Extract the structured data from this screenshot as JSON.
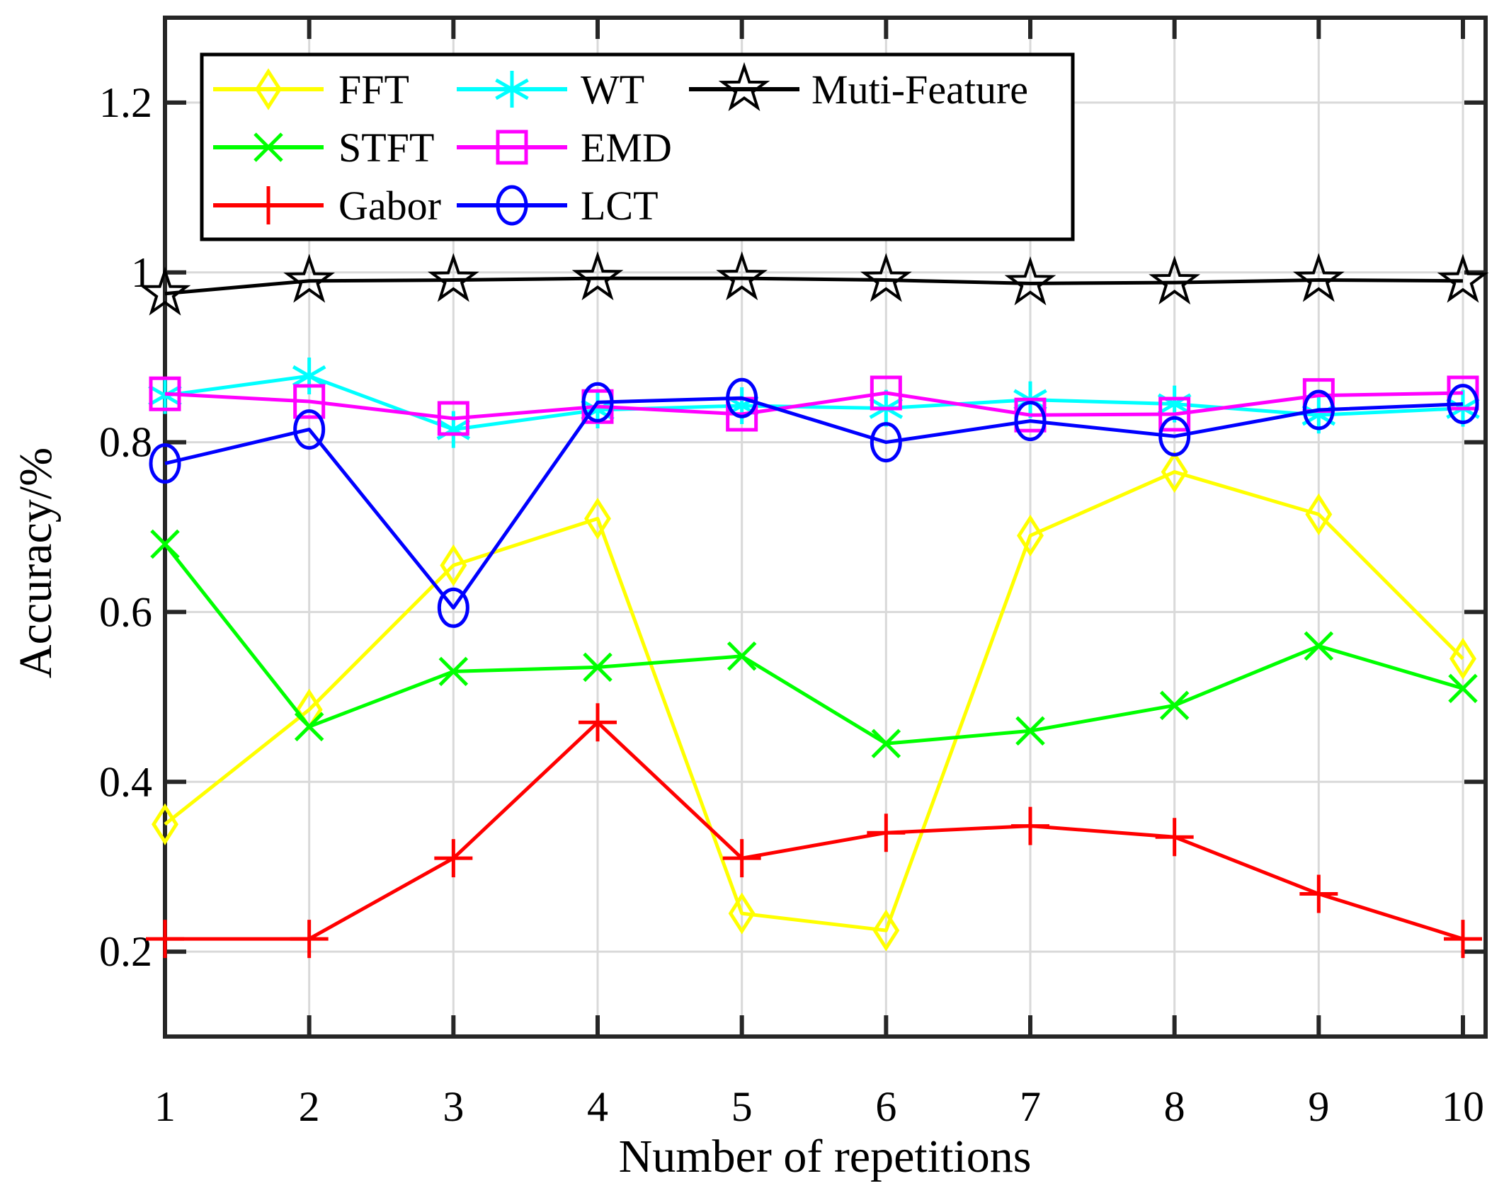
{
  "chart_data": {
    "type": "line",
    "title": "",
    "xlabel": "Number of repetitions",
    "ylabel": "Accuracy/%",
    "x": [
      1,
      2,
      3,
      4,
      5,
      6,
      7,
      8,
      9,
      10
    ],
    "xtick_labels": [
      "1",
      "2",
      "3",
      "4",
      "5",
      "6",
      "7",
      "8",
      "9",
      "10"
    ],
    "yticks": [
      0.2,
      0.4,
      0.6,
      0.8,
      1.0,
      1.2
    ],
    "ytick_labels": [
      "0.2",
      "0.4",
      "0.6",
      "0.8",
      "1",
      "1.2"
    ],
    "xlim": [
      1,
      10.16
    ],
    "ylim": [
      0.1,
      1.3
    ],
    "grid": true,
    "legend_position": "top-left-inside",
    "series": [
      {
        "name": "FFT",
        "color": "#ffff00",
        "marker": "diamond",
        "values": [
          0.35,
          0.485,
          0.655,
          0.71,
          0.245,
          0.225,
          0.69,
          0.765,
          0.715,
          0.545
        ]
      },
      {
        "name": "STFT",
        "color": "#00ff00",
        "marker": "x",
        "values": [
          0.68,
          0.465,
          0.53,
          0.535,
          0.548,
          0.445,
          0.46,
          0.49,
          0.56,
          0.51
        ]
      },
      {
        "name": "Gabor",
        "color": "#ff0000",
        "marker": "plus",
        "values": [
          0.215,
          0.215,
          0.31,
          0.47,
          0.31,
          0.34,
          0.348,
          0.335,
          0.268,
          0.215
        ]
      },
      {
        "name": "WT",
        "color": "#00ffff",
        "marker": "asterisk",
        "values": [
          0.855,
          0.878,
          0.815,
          0.838,
          0.843,
          0.84,
          0.85,
          0.845,
          0.832,
          0.84
        ]
      },
      {
        "name": "EMD",
        "color": "#ff00ff",
        "marker": "square",
        "values": [
          0.857,
          0.848,
          0.828,
          0.842,
          0.833,
          0.858,
          0.832,
          0.833,
          0.855,
          0.858
        ]
      },
      {
        "name": "LCT",
        "color": "#0000ff",
        "marker": "circle",
        "values": [
          0.775,
          0.815,
          0.605,
          0.847,
          0.852,
          0.8,
          0.825,
          0.807,
          0.838,
          0.845
        ]
      },
      {
        "name": "Muti-Feature",
        "color": "#000000",
        "marker": "star",
        "values": [
          0.975,
          0.99,
          0.991,
          0.993,
          0.993,
          0.991,
          0.987,
          0.988,
          0.991,
          0.99
        ]
      }
    ],
    "legend_rows": [
      [
        "FFT",
        "WT",
        "Muti-Feature"
      ],
      [
        "STFT",
        "EMD"
      ],
      [
        "Gabor",
        "LCT"
      ]
    ],
    "colors": {
      "grid": "#d9d9d9",
      "axis": "#262626",
      "legend_border": "#000000",
      "background": "#ffffff"
    }
  }
}
